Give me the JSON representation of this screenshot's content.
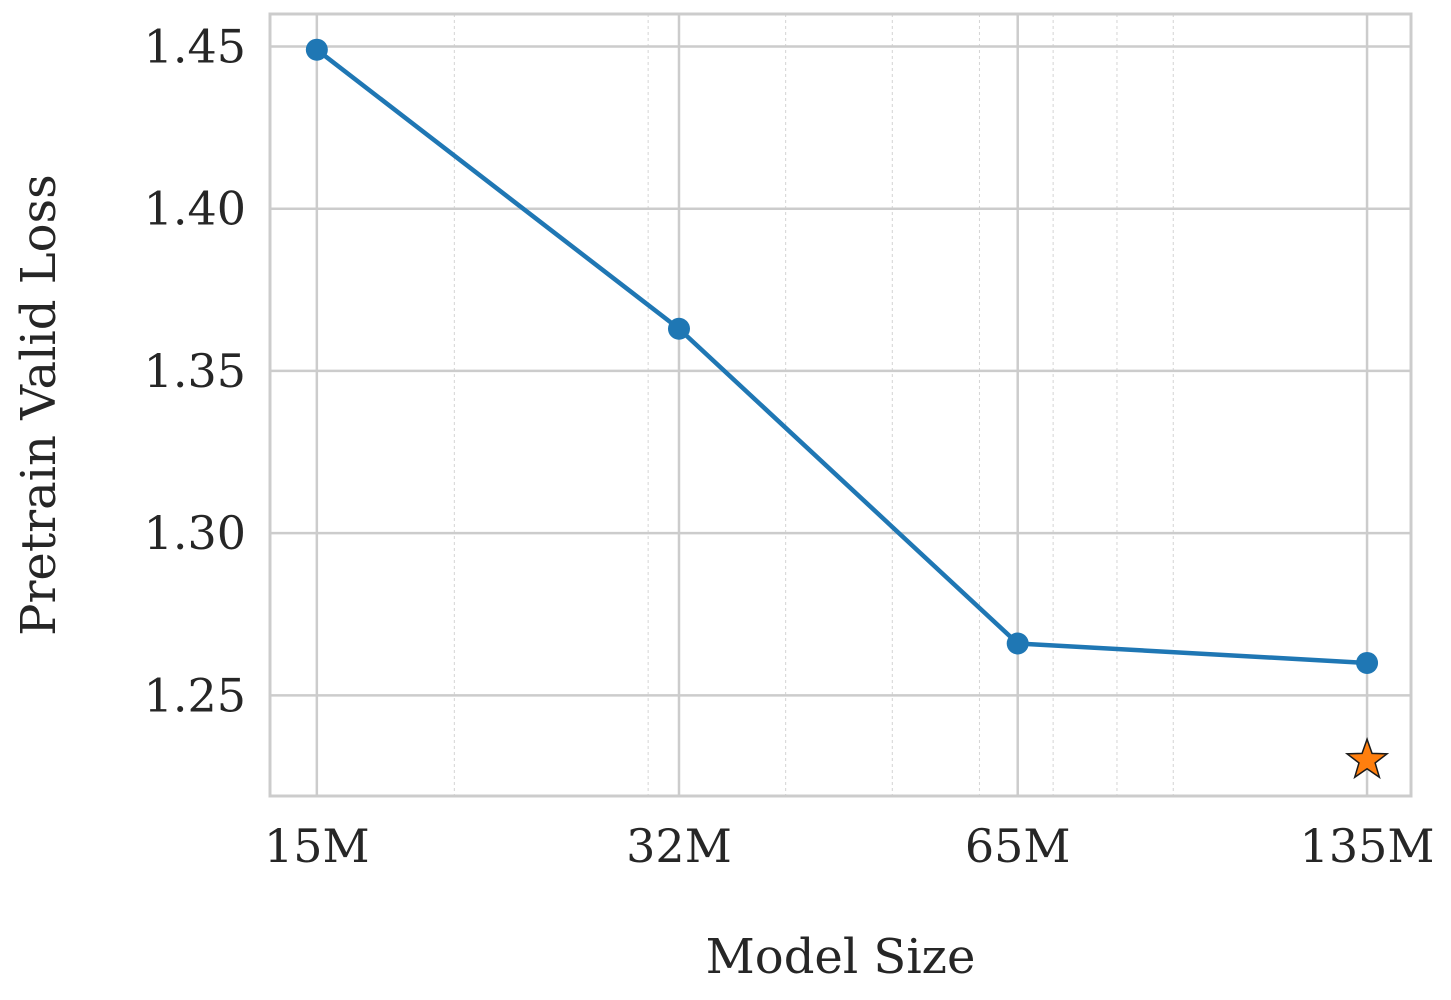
{
  "chart_data": {
    "type": "line",
    "xlabel": "Model Size",
    "ylabel": "Pretrain Valid Loss",
    "x_scale": "log",
    "x_tick_labels": [
      "15M",
      "32M",
      "65M",
      "135M"
    ],
    "x_tick_values": [
      15,
      32,
      65,
      135
    ],
    "x_minor_ticks": [
      20,
      30,
      40,
      50,
      60,
      70,
      80,
      90
    ],
    "xlim": [
      13.6,
      148
    ],
    "y_ticks": [
      1.25,
      1.3,
      1.35,
      1.4,
      1.45
    ],
    "y_tick_labels": [
      "1.25",
      "1.30",
      "1.35",
      "1.40",
      "1.45"
    ],
    "ylim": [
      1.219,
      1.46
    ],
    "grid": true,
    "series": [
      {
        "x": [
          15,
          32,
          65,
          135
        ],
        "y": [
          1.449,
          1.363,
          1.266,
          1.26
        ],
        "color": "#1f77b4",
        "marker": "circle"
      }
    ],
    "highlight_point": {
      "x": 135,
      "y": 1.23,
      "marker": "star",
      "color": "#ff7f0e"
    }
  }
}
